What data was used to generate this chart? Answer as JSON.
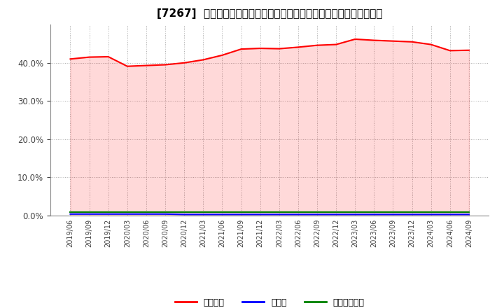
{
  "title": "[7267]  自己資本、のれん、繰延税金資産の総資産に対する比率の推移",
  "x_labels": [
    "2019/06",
    "2019/09",
    "2019/12",
    "2020/03",
    "2020/06",
    "2020/09",
    "2020/12",
    "2021/03",
    "2021/06",
    "2021/09",
    "2021/12",
    "2022/03",
    "2022/06",
    "2022/09",
    "2022/12",
    "2023/03",
    "2023/06",
    "2023/09",
    "2023/12",
    "2024/03",
    "2024/06",
    "2024/09"
  ],
  "equity_ratio": [
    0.41,
    0.415,
    0.416,
    0.391,
    0.393,
    0.395,
    0.4,
    0.408,
    0.42,
    0.436,
    0.438,
    0.437,
    0.441,
    0.446,
    0.448,
    0.462,
    0.459,
    0.457,
    0.455,
    0.448,
    0.432,
    0.433
  ],
  "goodwill_ratio": [
    0.004,
    0.004,
    0.004,
    0.004,
    0.004,
    0.004,
    0.003,
    0.003,
    0.003,
    0.003,
    0.003,
    0.003,
    0.003,
    0.003,
    0.003,
    0.003,
    0.003,
    0.003,
    0.003,
    0.003,
    0.003,
    0.003
  ],
  "deferred_tax_ratio": [
    0.01,
    0.01,
    0.01,
    0.01,
    0.01,
    0.01,
    0.01,
    0.01,
    0.01,
    0.01,
    0.01,
    0.01,
    0.01,
    0.01,
    0.01,
    0.01,
    0.01,
    0.01,
    0.01,
    0.01,
    0.01,
    0.01
  ],
  "equity_color": "#ff0000",
  "goodwill_color": "#0000ff",
  "deferred_tax_color": "#008000",
  "bg_color": "#ffffff",
  "plot_bg_color": "#ffffff",
  "grid_color": "#aaaaaa",
  "legend_labels": [
    "自己資本",
    "のれん",
    "繰延税金資産"
  ],
  "ylim": [
    0.0,
    0.5
  ],
  "yticks": [
    0.0,
    0.1,
    0.2,
    0.3,
    0.4
  ],
  "title_fontsize": 11
}
